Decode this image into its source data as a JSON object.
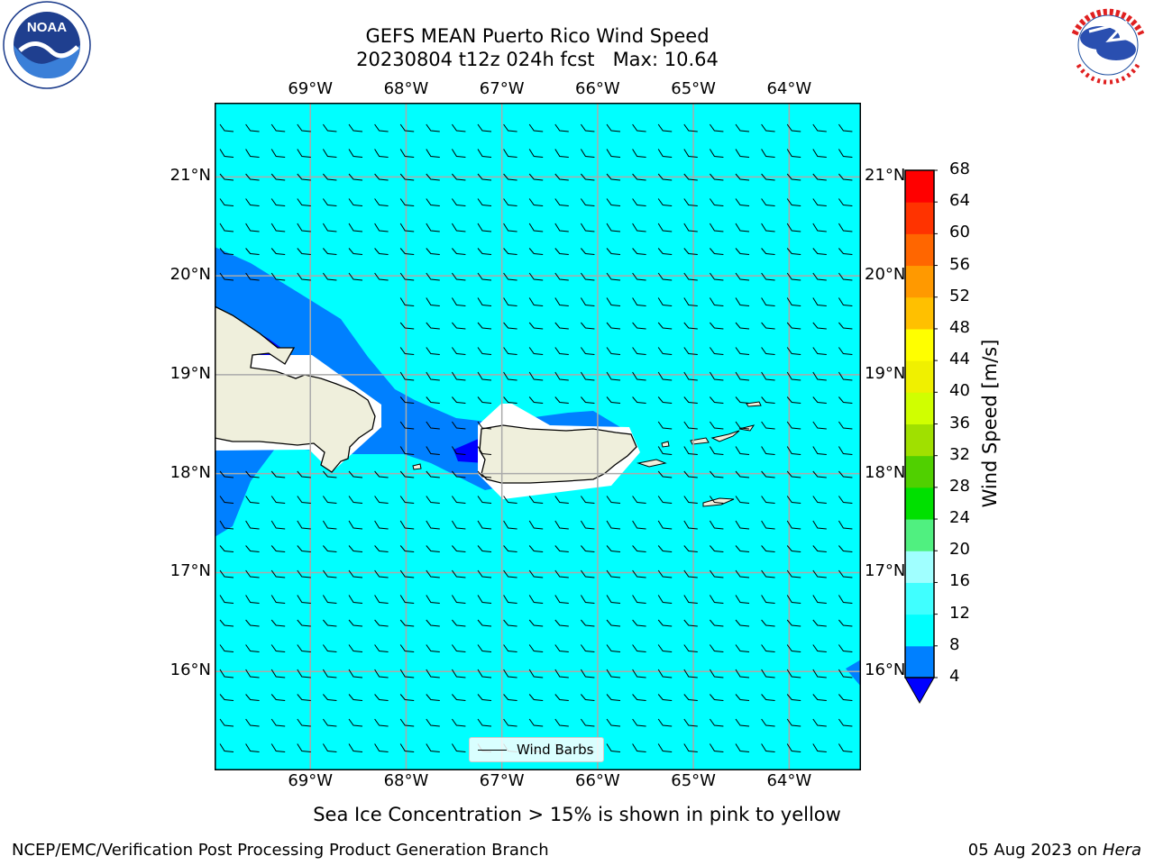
{
  "title_line1": "GEFS MEAN Puerto Rico Wind Speed",
  "title_line2": "20230804 t12z 024h fcst   Max: 10.64",
  "map": {
    "lon_ticks": [
      "69°W",
      "68°W",
      "67°W",
      "66°W",
      "65°W",
      "64°W"
    ],
    "lat_ticks": [
      "21°N",
      "20°N",
      "19°N",
      "18°N",
      "17°N",
      "16°N"
    ],
    "lon_extent": [
      -70,
      -63.25
    ],
    "lat_extent": [
      15,
      21.75
    ],
    "background_color": "#00ffff",
    "land_color": "#efefdc",
    "gridlines": true
  },
  "legend": {
    "label": "Wind Barbs"
  },
  "colorbar": {
    "label": "Wind Speed [m/s]",
    "ticks": [
      "68",
      "64",
      "60",
      "56",
      "52",
      "48",
      "44",
      "40",
      "36",
      "32",
      "28",
      "24",
      "20",
      "16",
      "12",
      "8",
      "4"
    ],
    "levels": [
      4,
      8,
      12,
      16,
      20,
      24,
      28,
      32,
      36,
      40,
      44,
      48,
      52,
      56,
      60,
      64,
      68
    ],
    "colors": [
      "#0080ff",
      "#00ffff",
      "#40ffff",
      "#a0ffff",
      "#50f080",
      "#00e000",
      "#50d000",
      "#a0e000",
      "#d0ff00",
      "#f0f000",
      "#ffff00",
      "#ffc000",
      "#ff9900",
      "#ff6600",
      "#ff3300",
      "#ff0000"
    ],
    "under_color": "#0000ff"
  },
  "subtitle": "Sea Ice Concentration > 15% is shown in pink to yellow",
  "footer_left": "NCEP/EMC/Verification Post Processing Product Generation Branch",
  "footer_date": "05 Aug 2023 on ",
  "footer_machine": "Hera",
  "logos": {
    "left": "NOAA",
    "right": "NATIONAL WEATHER SERVICE"
  }
}
